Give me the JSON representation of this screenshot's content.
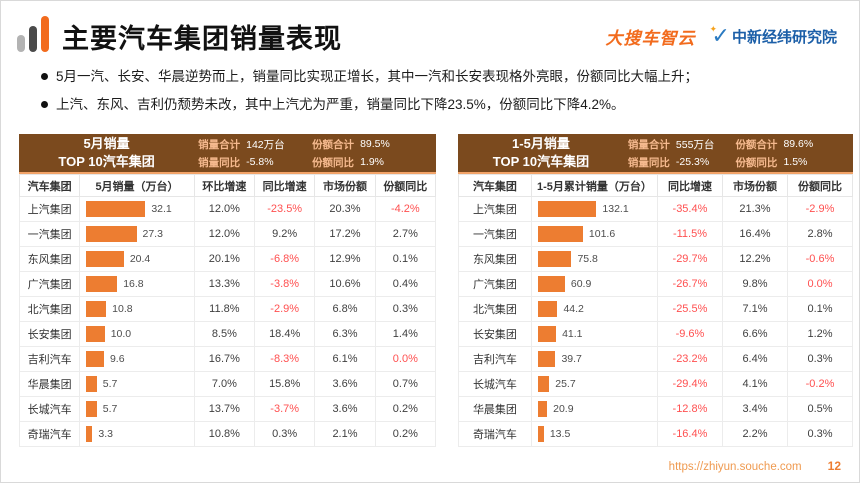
{
  "header": {
    "title": "主要汽车集团销量表现",
    "logo_left": "大搜车智云",
    "logo_right": "中新经纬研究院"
  },
  "bullets": [
    "5月一汽、长安、华晨逆势而上，销量同比实现正增长，其中一汽和长安表现格外亮眼，份额同比大幅上升；",
    "上汽、东风、吉利仍颓势未改，其中上汽尤为严重，销量同比下降23.5%，份额同比下降4.2%。"
  ],
  "tables": [
    {
      "title_line1": "5月销量",
      "title_line2": "TOP 10汽车集团",
      "stats": [
        {
          "label": "销量合计",
          "value": "142万台"
        },
        {
          "label": "份额合计",
          "value": "89.5%"
        },
        {
          "label": "销量同比",
          "value": "-5.8%"
        },
        {
          "label": "份额同比",
          "value": "1.9%"
        }
      ],
      "columns": [
        "汽车集团",
        "5月销量（万台）",
        "环比增速",
        "同比增速",
        "市场份额",
        "份额同比"
      ],
      "rows": [
        {
          "group": "上汽集团",
          "bar": 32.1,
          "cells": [
            {
              "v": "12.0%",
              "red": false
            },
            {
              "v": "-23.5%",
              "red": true
            },
            {
              "v": "20.3%",
              "red": false
            },
            {
              "v": "-4.2%",
              "red": true
            }
          ]
        },
        {
          "group": "一汽集团",
          "bar": 27.3,
          "cells": [
            {
              "v": "12.0%",
              "red": false
            },
            {
              "v": "9.2%",
              "red": false
            },
            {
              "v": "17.2%",
              "red": false
            },
            {
              "v": "2.7%",
              "red": false
            }
          ]
        },
        {
          "group": "东风集团",
          "bar": 20.4,
          "cells": [
            {
              "v": "20.1%",
              "red": false
            },
            {
              "v": "-6.8%",
              "red": true
            },
            {
              "v": "12.9%",
              "red": false
            },
            {
              "v": "0.1%",
              "red": false
            }
          ]
        },
        {
          "group": "广汽集团",
          "bar": 16.8,
          "cells": [
            {
              "v": "13.3%",
              "red": false
            },
            {
              "v": "-3.8%",
              "red": true
            },
            {
              "v": "10.6%",
              "red": false
            },
            {
              "v": "0.4%",
              "red": false
            }
          ]
        },
        {
          "group": "北汽集团",
          "bar": 10.8,
          "cells": [
            {
              "v": "11.8%",
              "red": false
            },
            {
              "v": "-2.9%",
              "red": true
            },
            {
              "v": "6.8%",
              "red": false
            },
            {
              "v": "0.3%",
              "red": false
            }
          ]
        },
        {
          "group": "长安集团",
          "bar": 10.0,
          "cells": [
            {
              "v": "8.5%",
              "red": false
            },
            {
              "v": "18.4%",
              "red": false
            },
            {
              "v": "6.3%",
              "red": false
            },
            {
              "v": "1.4%",
              "red": false
            }
          ]
        },
        {
          "group": "吉利汽车",
          "bar": 9.6,
          "cells": [
            {
              "v": "16.7%",
              "red": false
            },
            {
              "v": "-8.3%",
              "red": true
            },
            {
              "v": "6.1%",
              "red": false
            },
            {
              "v": "0.0%",
              "red": true
            }
          ]
        },
        {
          "group": "华晨集团",
          "bar": 5.7,
          "cells": [
            {
              "v": "7.0%",
              "red": false
            },
            {
              "v": "15.8%",
              "red": false
            },
            {
              "v": "3.6%",
              "red": false
            },
            {
              "v": "0.7%",
              "red": false
            }
          ]
        },
        {
          "group": "长城汽车",
          "bar": 5.7,
          "cells": [
            {
              "v": "13.7%",
              "red": false
            },
            {
              "v": "-3.7%",
              "red": true
            },
            {
              "v": "3.6%",
              "red": false
            },
            {
              "v": "0.2%",
              "red": false
            }
          ]
        },
        {
          "group": "奇瑞汽车",
          "bar": 3.3,
          "cells": [
            {
              "v": "10.8%",
              "red": false
            },
            {
              "v": "0.3%",
              "red": false
            },
            {
              "v": "2.1%",
              "red": false
            },
            {
              "v": "0.2%",
              "red": false
            }
          ]
        }
      ]
    },
    {
      "title_line1": "1-5月销量",
      "title_line2": "TOP 10汽车集团",
      "stats": [
        {
          "label": "销量合计",
          "value": "555万台"
        },
        {
          "label": "份额合计",
          "value": "89.6%"
        },
        {
          "label": "销量同比",
          "value": "-25.3%"
        },
        {
          "label": "份额同比",
          "value": "1.5%"
        }
      ],
      "columns": [
        "汽车集团",
        "1-5月累计销量（万台）",
        "同比增速",
        "市场份额",
        "份额同比"
      ],
      "rows": [
        {
          "group": "上汽集团",
          "bar": 132.1,
          "cells": [
            {
              "v": "-35.4%",
              "red": true
            },
            {
              "v": "21.3%",
              "red": false
            },
            {
              "v": "-2.9%",
              "red": true
            }
          ]
        },
        {
          "group": "一汽集团",
          "bar": 101.6,
          "cells": [
            {
              "v": "-11.5%",
              "red": true
            },
            {
              "v": "16.4%",
              "red": false
            },
            {
              "v": "2.8%",
              "red": false
            }
          ]
        },
        {
          "group": "东风集团",
          "bar": 75.8,
          "cells": [
            {
              "v": "-29.7%",
              "red": true
            },
            {
              "v": "12.2%",
              "red": false
            },
            {
              "v": "-0.6%",
              "red": true
            }
          ]
        },
        {
          "group": "广汽集团",
          "bar": 60.9,
          "cells": [
            {
              "v": "-26.7%",
              "red": true
            },
            {
              "v": "9.8%",
              "red": false
            },
            {
              "v": "0.0%",
              "red": true
            }
          ]
        },
        {
          "group": "北汽集团",
          "bar": 44.2,
          "cells": [
            {
              "v": "-25.5%",
              "red": true
            },
            {
              "v": "7.1%",
              "red": false
            },
            {
              "v": "0.1%",
              "red": false
            }
          ]
        },
        {
          "group": "长安集团",
          "bar": 41.1,
          "cells": [
            {
              "v": "-9.6%",
              "red": true
            },
            {
              "v": "6.6%",
              "red": false
            },
            {
              "v": "1.2%",
              "red": false
            }
          ]
        },
        {
          "group": "吉利汽车",
          "bar": 39.7,
          "cells": [
            {
              "v": "-23.2%",
              "red": true
            },
            {
              "v": "6.4%",
              "red": false
            },
            {
              "v": "0.3%",
              "red": false
            }
          ]
        },
        {
          "group": "长城汽车",
          "bar": 25.7,
          "cells": [
            {
              "v": "-29.4%",
              "red": true
            },
            {
              "v": "4.1%",
              "red": false
            },
            {
              "v": "-0.2%",
              "red": true
            }
          ]
        },
        {
          "group": "华晨集团",
          "bar": 20.9,
          "cells": [
            {
              "v": "-12.8%",
              "red": true
            },
            {
              "v": "3.4%",
              "red": false
            },
            {
              "v": "0.5%",
              "red": false
            }
          ]
        },
        {
          "group": "奇瑞汽车",
          "bar": 13.5,
          "cells": [
            {
              "v": "-16.4%",
              "red": true
            },
            {
              "v": "2.2%",
              "red": false
            },
            {
              "v": "0.3%",
              "red": false
            }
          ]
        }
      ]
    }
  ],
  "footer": {
    "url": "https://zhiyun.souche.com",
    "page": "12"
  },
  "colors": {
    "panel_header_brown": "#7B4A1E",
    "stat_label_peach": "#F5B98E",
    "bar_orange": "#ED7D31",
    "negative_red": "#FF5050",
    "brand_orange": "#F26B1D",
    "logo_blue": "#1C5FA8"
  },
  "chart_data": [
    {
      "type": "table",
      "title": "5月销量 TOP 10汽车集团",
      "summary": {
        "销量合计": "142万台",
        "销量同比": "-5.8%",
        "份额合计": "89.5%",
        "份额同比": "1.9%"
      },
      "columns": [
        "汽车集团",
        "5月销量（万台）",
        "环比增速",
        "同比增速",
        "市场份额",
        "份额同比"
      ],
      "rows": [
        [
          "上汽集团",
          32.1,
          "12.0%",
          "-23.5%",
          "20.3%",
          "-4.2%"
        ],
        [
          "一汽集团",
          27.3,
          "12.0%",
          "9.2%",
          "17.2%",
          "2.7%"
        ],
        [
          "东风集团",
          20.4,
          "20.1%",
          "-6.8%",
          "12.9%",
          "0.1%"
        ],
        [
          "广汽集团",
          16.8,
          "13.3%",
          "-3.8%",
          "10.6%",
          "0.4%"
        ],
        [
          "北汽集团",
          10.8,
          "11.8%",
          "-2.9%",
          "6.8%",
          "0.3%"
        ],
        [
          "长安集团",
          10.0,
          "8.5%",
          "18.4%",
          "6.3%",
          "1.4%"
        ],
        [
          "吉利汽车",
          9.6,
          "16.7%",
          "-8.3%",
          "6.1%",
          "0.0%"
        ],
        [
          "华晨集团",
          5.7,
          "7.0%",
          "15.8%",
          "3.6%",
          "0.7%"
        ],
        [
          "长城汽车",
          5.7,
          "13.7%",
          "-3.7%",
          "3.6%",
          "0.2%"
        ],
        [
          "奇瑞汽车",
          3.3,
          "10.8%",
          "0.3%",
          "2.1%",
          "0.2%"
        ]
      ],
      "bar_column": "5月销量（万台）",
      "bar_type": "bar"
    },
    {
      "type": "table",
      "title": "1-5月销量 TOP 10汽车集团",
      "summary": {
        "销量合计": "555万台",
        "销量同比": "-25.3%",
        "份额合计": "89.6%",
        "份额同比": "1.5%"
      },
      "columns": [
        "汽车集团",
        "1-5月累计销量（万台）",
        "同比增速",
        "市场份额",
        "份额同比"
      ],
      "rows": [
        [
          "上汽集团",
          132.1,
          "-35.4%",
          "21.3%",
          "-2.9%"
        ],
        [
          "一汽集团",
          101.6,
          "-11.5%",
          "16.4%",
          "2.8%"
        ],
        [
          "东风集团",
          75.8,
          "-29.7%",
          "12.2%",
          "-0.6%"
        ],
        [
          "广汽集团",
          60.9,
          "-26.7%",
          "9.8%",
          "0.0%"
        ],
        [
          "北汽集团",
          44.2,
          "-25.5%",
          "7.1%",
          "0.1%"
        ],
        [
          "长安集团",
          41.1,
          "-9.6%",
          "6.6%",
          "1.2%"
        ],
        [
          "吉利汽车",
          39.7,
          "-23.2%",
          "6.4%",
          "0.3%"
        ],
        [
          "长城汽车",
          25.7,
          "-29.4%",
          "4.1%",
          "-0.2%"
        ],
        [
          "华晨集团",
          20.9,
          "-12.8%",
          "3.4%",
          "0.5%"
        ],
        [
          "奇瑞汽车",
          13.5,
          "-16.4%",
          "2.2%",
          "0.3%"
        ]
      ],
      "bar_column": "1-5月累计销量（万台）",
      "bar_type": "bar"
    }
  ]
}
